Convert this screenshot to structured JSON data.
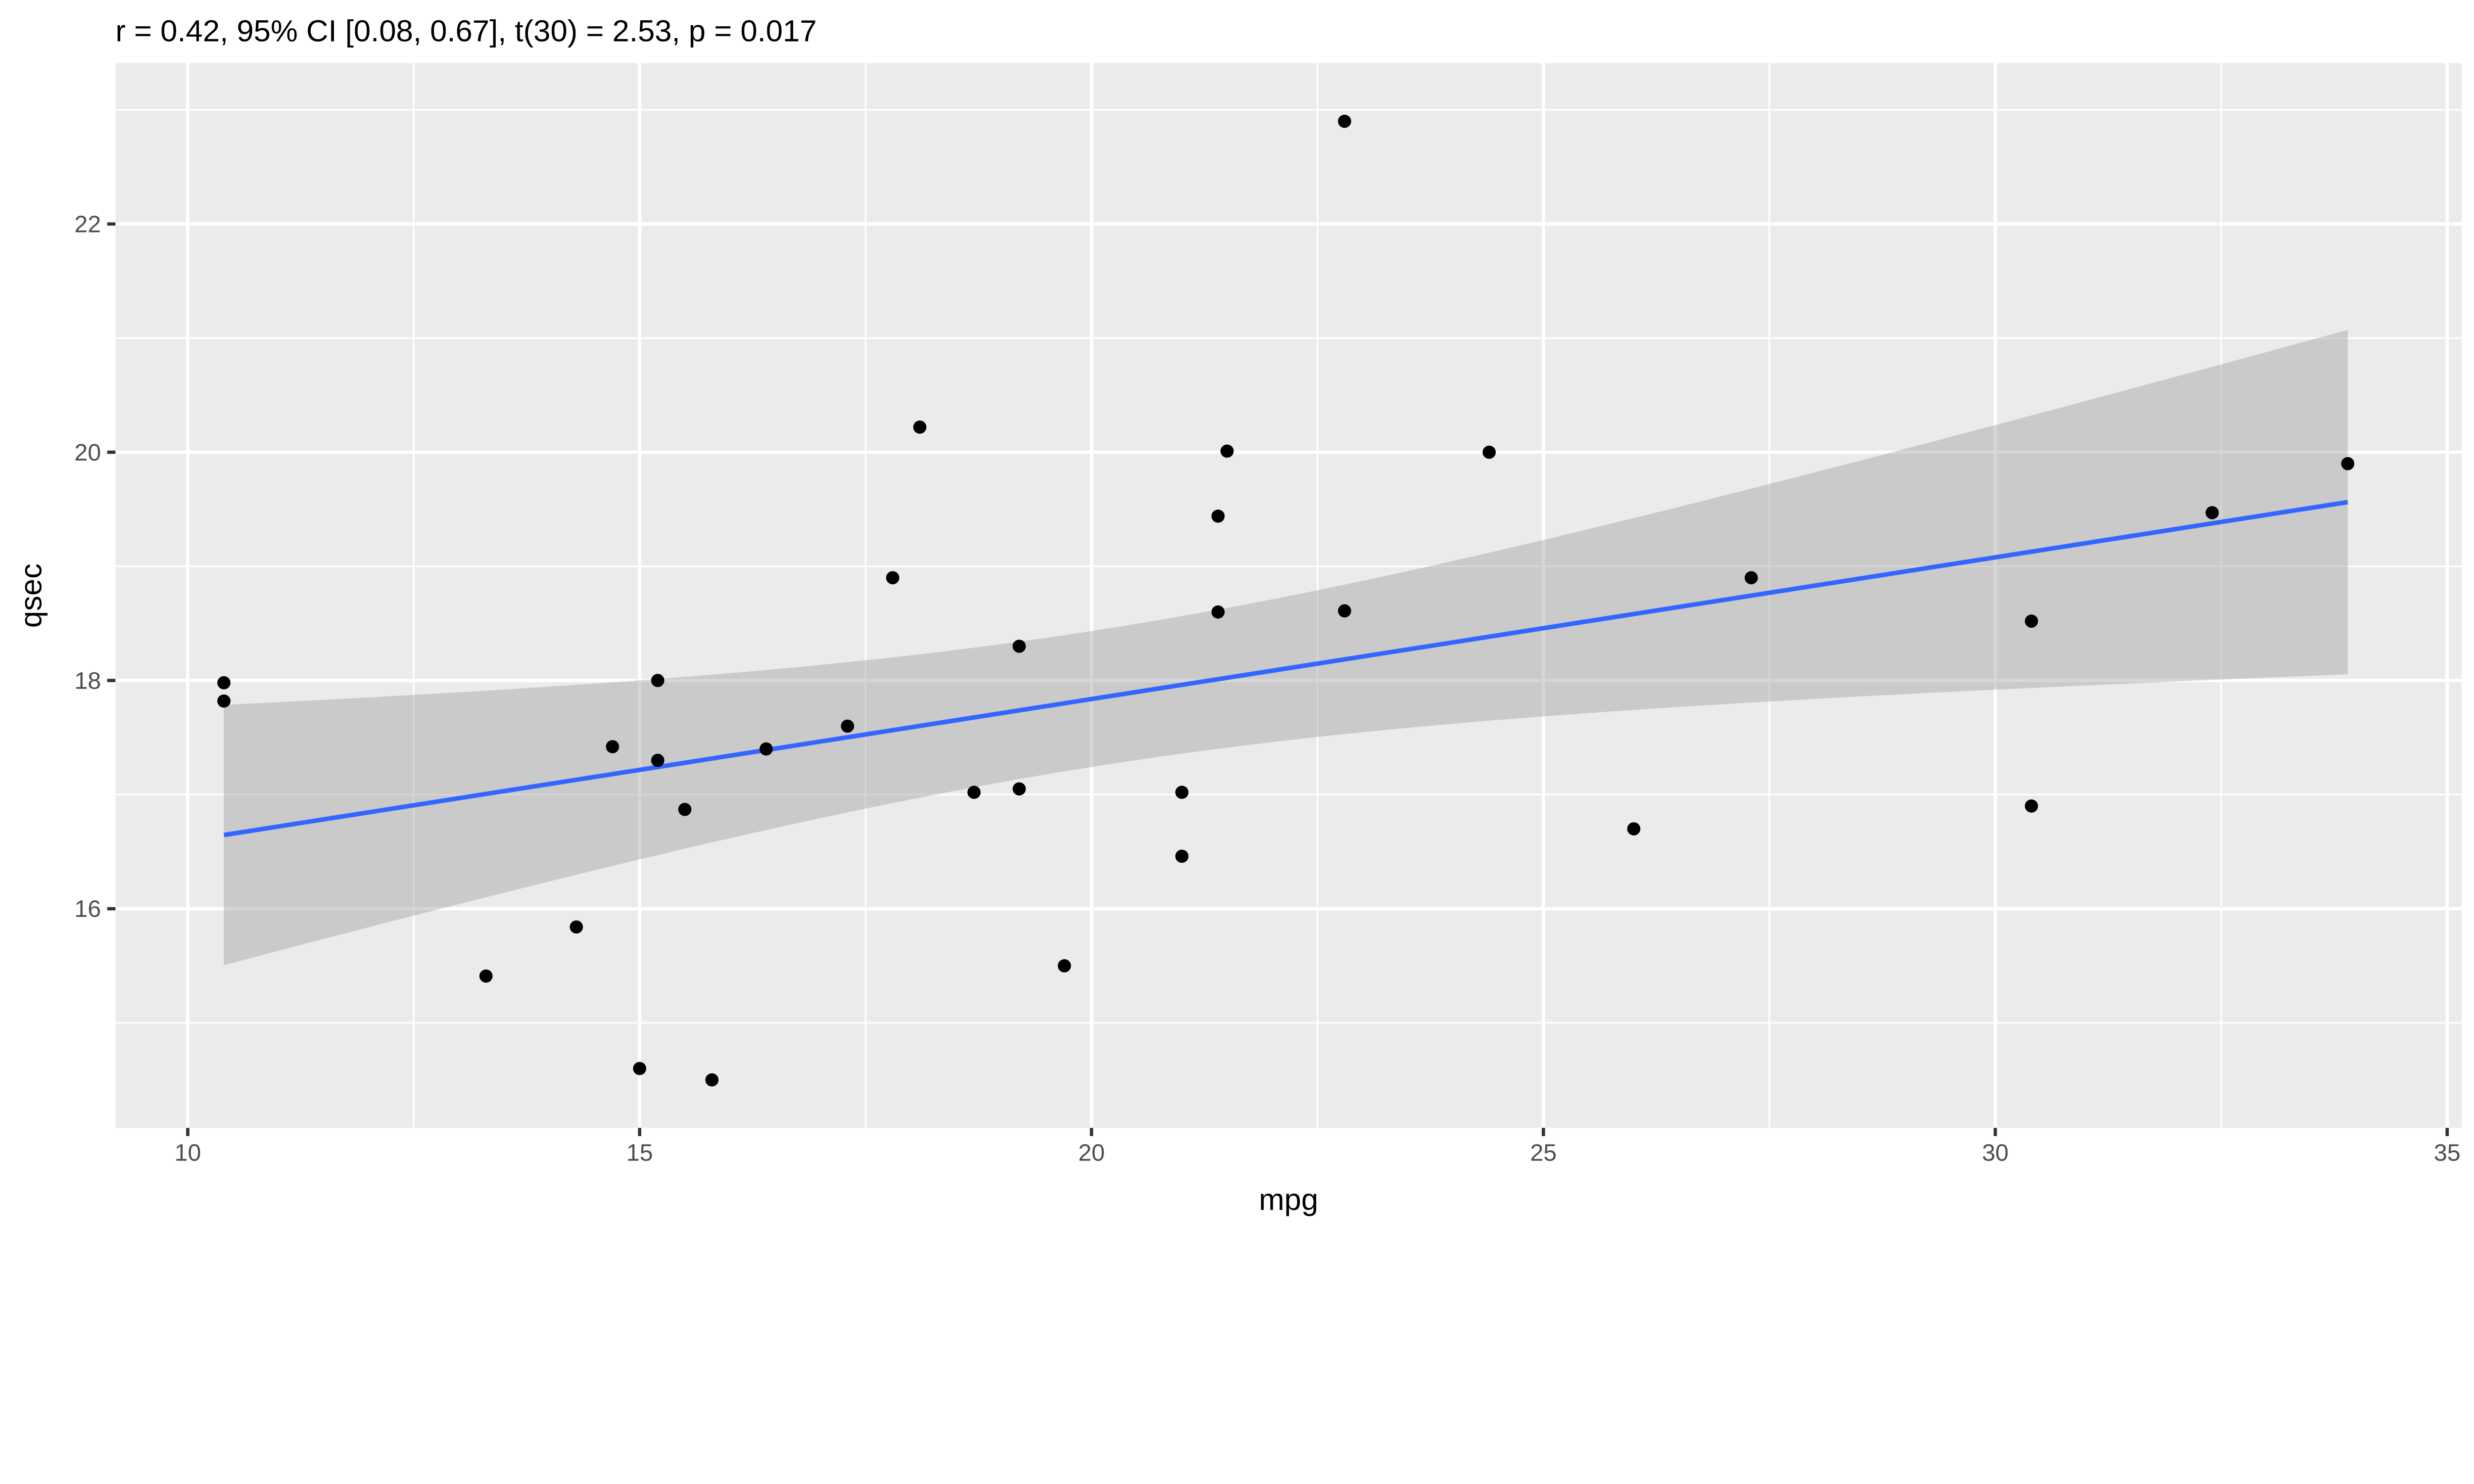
{
  "chart_data": {
    "type": "scatter",
    "title": "r = 0.42, 95% CI [0.08, 0.67], t(30) = 2.53, p = 0.017",
    "xlabel": "mpg",
    "ylabel": "qsec",
    "xlim": [
      9.2,
      35.16
    ],
    "ylim": [
      14.08,
      23.41
    ],
    "grid": true,
    "x_ticks": [
      10,
      15,
      20,
      25,
      30,
      35
    ],
    "y_ticks": [
      16,
      18,
      20,
      22
    ],
    "x_tick_labels": [
      "10",
      "15",
      "20",
      "25",
      "30",
      "35"
    ],
    "y_tick_labels": [
      "16",
      "18",
      "20",
      "22"
    ],
    "x_minor": [
      12.5,
      17.5,
      22.5,
      27.5,
      32.5
    ],
    "y_minor": [
      15,
      17,
      19,
      21,
      23
    ],
    "points": {
      "x": [
        21.0,
        21.0,
        22.8,
        21.4,
        18.7,
        18.1,
        14.3,
        24.4,
        22.8,
        19.2,
        17.8,
        16.4,
        17.3,
        15.2,
        10.4,
        10.4,
        14.7,
        32.4,
        30.4,
        33.9,
        21.5,
        15.5,
        15.2,
        13.3,
        19.2,
        27.3,
        26.0,
        30.4,
        15.8,
        19.7,
        15.0,
        21.4
      ],
      "y": [
        16.46,
        17.02,
        18.61,
        19.44,
        17.02,
        20.22,
        15.84,
        20.0,
        22.9,
        18.3,
        18.9,
        17.4,
        17.6,
        18.0,
        17.98,
        17.82,
        17.42,
        19.47,
        18.52,
        19.9,
        20.01,
        16.87,
        17.3,
        15.41,
        17.05,
        18.9,
        16.7,
        16.9,
        14.5,
        15.5,
        14.6,
        18.6
      ]
    },
    "fit": {
      "method": "lm",
      "level": 0.95
    },
    "colors": {
      "panel": "#EBEBEB",
      "grid": "#FFFFFF",
      "point": "#000000",
      "line": "#3366FF",
      "band": "#CBCBCB",
      "text": "#000000",
      "tick": "#4D4D4D"
    }
  }
}
